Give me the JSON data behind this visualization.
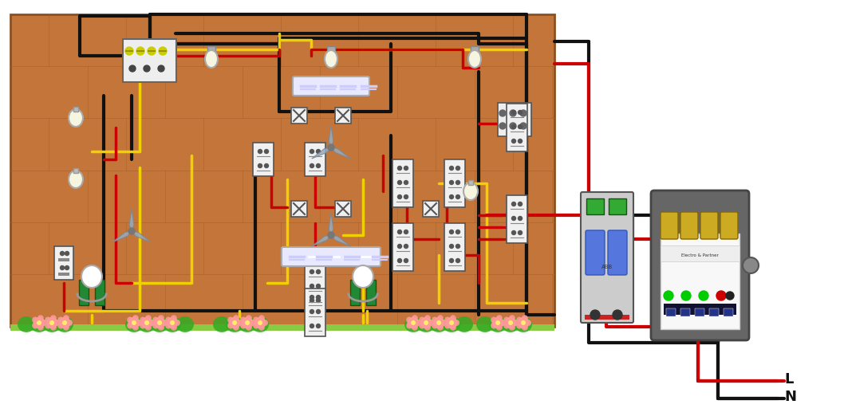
{
  "bg_color": "#ffffff",
  "house_color": "#C4763A",
  "house_border": "#8B5020",
  "wire_colors": {
    "black": "#111111",
    "red": "#cc0000",
    "yellow": "#f0d000"
  },
  "label_L": "L",
  "label_N": "N"
}
